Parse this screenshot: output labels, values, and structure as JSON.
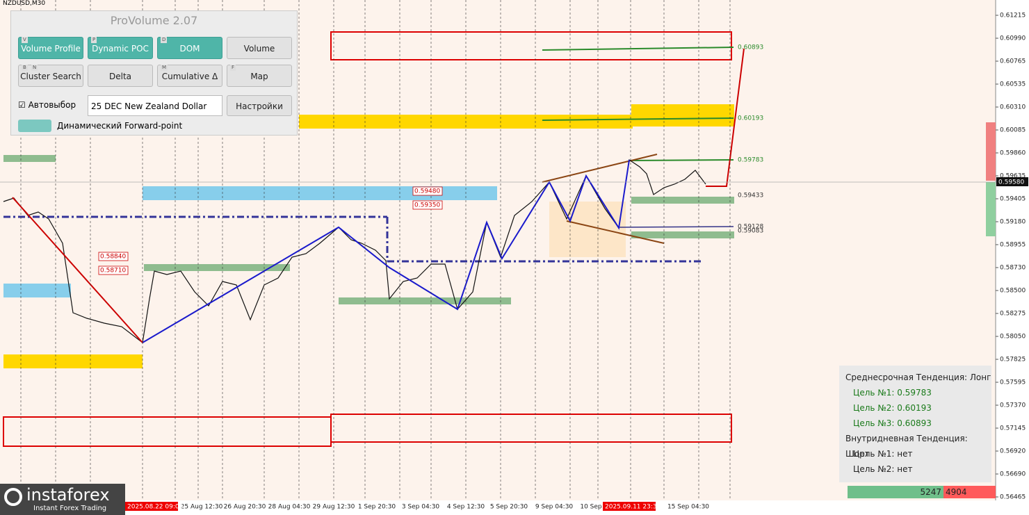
{
  "window": {
    "symbol": "NZDUSD,M30"
  },
  "panel": {
    "title": "ProVolume 2.07",
    "buttons": [
      {
        "keys": [
          "V"
        ],
        "label": "Volume Profile",
        "active": true
      },
      {
        "keys": [
          "P"
        ],
        "label": "Dynamic POC",
        "active": true
      },
      {
        "keys": [
          "D"
        ],
        "label": "DOM",
        "active": true
      },
      {
        "keys": [],
        "label": "Volume",
        "active": false
      },
      {
        "keys": [
          "B",
          "N"
        ],
        "label": "Cluster Search",
        "active": false
      },
      {
        "keys": [],
        "label": "Delta",
        "active": false
      },
      {
        "keys": [
          "M"
        ],
        "label": "Cumulative Δ",
        "active": false
      },
      {
        "keys": [
          "F"
        ],
        "label": "Map",
        "active": false
      }
    ],
    "auto_label": "Автовыбор",
    "instrument": "25 DEC New Zealand Dollar",
    "settings": "Настройки",
    "forward": "Динамический Forward-point"
  },
  "price_axis": {
    "ticks": [
      "0.61215",
      "0.60990",
      "0.60765",
      "0.60535",
      "0.60310",
      "0.60085",
      "0.59860",
      "0.59635",
      "0.59405",
      "0.59180",
      "0.58955",
      "0.58730",
      "0.58500",
      "0.58275",
      "0.58050",
      "0.57825",
      "0.57595",
      "0.57370",
      "0.57145",
      "0.56920",
      "0.56690",
      "0.56465"
    ],
    "current": "0.59580"
  },
  "time_axis": {
    "labels": [
      "25 Aug 12:30",
      "26 Aug 20:30",
      "28 Aug 04:30",
      "29 Aug 12:30",
      "1 Sep 20:30",
      "3 Sep 04:30",
      "4 Sep 12:30",
      "5 Sep 20:30",
      "9 Sep 04:30",
      "10 Sep",
      "15 Sep 04:30"
    ],
    "highlights": [
      "2025.08.22 09:00",
      "2025.09.11 23:30"
    ]
  },
  "levels": [
    "0.60893",
    "0.60193",
    "0.59783",
    "0.59433",
    "0.59128",
    "0.59083"
  ],
  "box_labels": [
    "0.59480",
    "0.59350",
    "0.58840",
    "0.58710"
  ],
  "trend_box": {
    "lines": [
      "Среднесрочная Тенденция: Лонг",
      "Цель №1: 0.59783",
      "Цель №2: 0.60193",
      "Цель №3: 0.60893",
      "Внутридневная Тенденция: Шорт",
      "Цель №1: нет",
      "Цель №2: нет"
    ]
  },
  "volume": {
    "buy": "5247",
    "sell": "4904"
  },
  "logo": {
    "name": "instaforex",
    "tagline": "Instant Forex Trading"
  }
}
